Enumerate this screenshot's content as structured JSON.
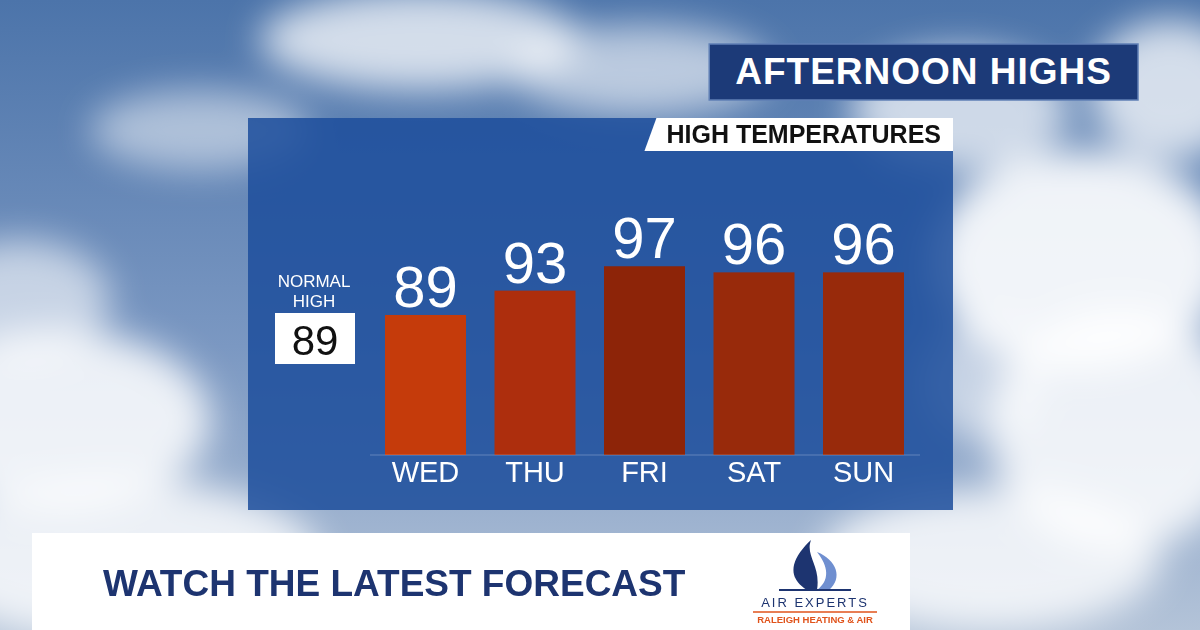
{
  "chart_data": {
    "type": "bar",
    "title": "AFTERNOON HIGHS",
    "subtitle": "HIGH TEMPERATURES",
    "categories": [
      "WED",
      "THU",
      "FRI",
      "SAT",
      "SUN"
    ],
    "values": [
      89,
      93,
      97,
      96,
      96
    ],
    "colors": [
      "#c53b0b",
      "#ad2e0d",
      "#8d2408",
      "#982a0b",
      "#982a0b"
    ],
    "ylim": [
      66,
      100
    ],
    "data_labels": true,
    "tick_labels": "x",
    "grid": false,
    "annotations": [
      {
        "text": "NORMAL HIGH",
        "value": 89
      }
    ]
  },
  "banner": {
    "text": "WATCH THE LATEST FORECAST",
    "sponsor": "AIR EXPERTS",
    "sponsor_tagline": "RALEIGH HEATING & AIR"
  }
}
